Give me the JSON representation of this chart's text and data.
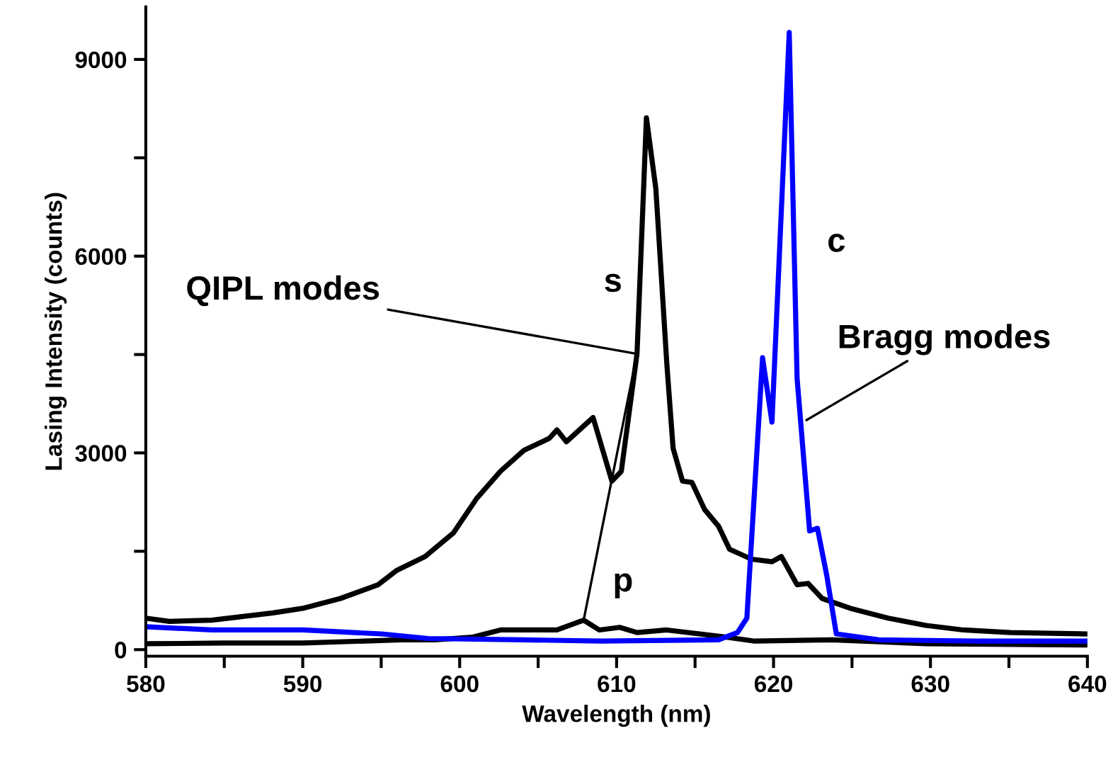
{
  "chart_data": {
    "type": "line",
    "xlabel": "Wavelength (nm)",
    "ylabel": "Lasing Intensity (counts)",
    "xlim": [
      580,
      640
    ],
    "ylim": [
      -100,
      9800
    ],
    "xticks": [
      580,
      {
        "value": 585,
        "label": null
      },
      590,
      {
        "value": 595,
        "label": null
      },
      600,
      {
        "value": 605,
        "label": null
      },
      610,
      {
        "value": 615,
        "label": null
      },
      620,
      {
        "value": 625,
        "label": null
      },
      630,
      {
        "value": 635,
        "label": null
      },
      640
    ],
    "yticks": [
      0,
      {
        "value": 1500,
        "label": null
      },
      3000,
      {
        "value": 4500,
        "label": null
      },
      6000,
      {
        "value": 7500,
        "label": null
      },
      9000
    ],
    "grid": false,
    "legend": false,
    "marker": "none",
    "line_style": "solid",
    "series": [
      {
        "name": "s",
        "color": "#000000",
        "x": [
          580,
          581.5,
          584.2,
          588.1,
          590,
          592.4,
          594.8,
          596,
          597.8,
          599.6,
          601.1,
          602.6,
          604.1,
          605.7,
          606.2,
          606.8,
          608.5,
          609.7,
          610.3,
          611.3,
          611.9,
          612.5,
          613.2,
          613.6,
          614.2,
          614.8,
          615.6,
          616.5,
          617.2,
          618.6,
          619.9,
          620.5,
          621.5,
          622.2,
          623.1,
          624.9,
          627.3,
          629.7,
          632.1,
          635.1,
          640
        ],
        "values": [
          480,
          430,
          450,
          560,
          630,
          780,
          990,
          1210,
          1420,
          1780,
          2310,
          2720,
          3040,
          3220,
          3350,
          3170,
          3540,
          2570,
          2720,
          4510,
          8110,
          7030,
          4360,
          3070,
          2570,
          2550,
          2140,
          1880,
          1530,
          1380,
          1340,
          1420,
          990,
          1010,
          780,
          630,
          480,
          370,
          300,
          260,
          240
        ]
      },
      {
        "name": "p",
        "color": "#000000",
        "x": [
          580,
          585,
          590,
          596.3,
          598.4,
          600.8,
          602.6,
          604.4,
          606.2,
          607.9,
          608.9,
          610.2,
          611.3,
          613.2,
          617,
          618.8,
          623.7,
          629.7,
          640
        ],
        "values": [
          90,
          100,
          100,
          150,
          150,
          190,
          300,
          300,
          300,
          450,
          300,
          340,
          260,
          300,
          190,
          130,
          150,
          90,
          70
        ]
      },
      {
        "name": "c",
        "color": "#0000ff",
        "x": [
          580,
          584.2,
          590,
          595,
          598,
          604,
          609,
          616.5,
          617.7,
          618.3,
          619.3,
          619.9,
          621,
          621.5,
          622.3,
          622.8,
          623.4,
          624,
          626.7,
          632.8,
          640
        ],
        "values": [
          350,
          300,
          300,
          240,
          170,
          150,
          130,
          150,
          260,
          480,
          4450,
          3470,
          9410,
          4140,
          1810,
          1850,
          1120,
          240,
          150,
          130,
          130
        ]
      }
    ],
    "annotations": [
      {
        "text": "QIPL modes",
        "x": 611.3,
        "y": 4510
      },
      {
        "text": "Bragg modes",
        "x": 622.1,
        "y": 3500
      }
    ]
  }
}
